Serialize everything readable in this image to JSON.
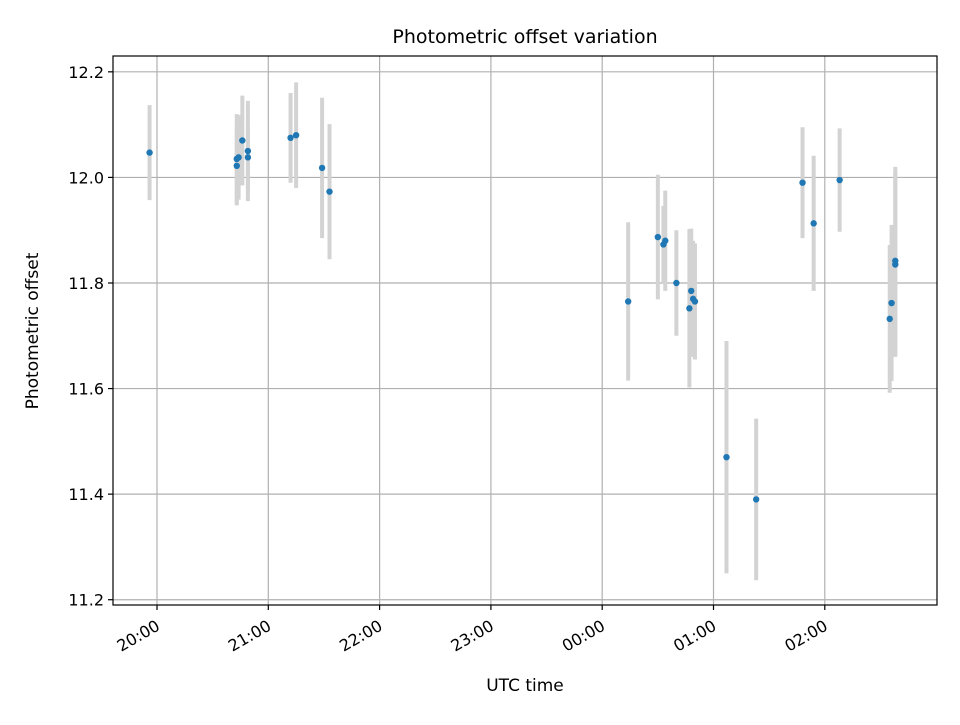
{
  "chart_data": {
    "type": "scatter",
    "title": "Photometric offset variation",
    "xlabel": "UTC time",
    "ylabel": "Photometric offset",
    "x_tick_labels": [
      "20:00",
      "21:00",
      "22:00",
      "23:00",
      "00:00",
      "01:00",
      "02:00"
    ],
    "y_ticks": [
      11.2,
      11.4,
      11.6,
      11.8,
      12.0,
      12.2
    ],
    "y_tick_labels": [
      "11.2",
      "11.4",
      "11.6",
      "11.8",
      "12.0",
      "12.2"
    ],
    "ylim": [
      11.19,
      12.23
    ],
    "grid": true,
    "colors": {
      "points": "#1f77b4",
      "errorbars": "#d3d3d3",
      "grid": "#b0b0b0"
    },
    "points": [
      {
        "t": "19:56",
        "y": 12.047,
        "err": 0.09
      },
      {
        "t": "20:43",
        "y": 12.035,
        "err": 0.085
      },
      {
        "t": "20:43",
        "y": 12.022,
        "err": 0.075
      },
      {
        "t": "20:44",
        "y": 12.038,
        "err": 0.08
      },
      {
        "t": "20:46",
        "y": 12.07,
        "err": 0.085
      },
      {
        "t": "20:49",
        "y": 12.038,
        "err": 0.06
      },
      {
        "t": "20:49",
        "y": 12.05,
        "err": 0.095
      },
      {
        "t": "21:12",
        "y": 12.075,
        "err": 0.085
      },
      {
        "t": "21:15",
        "y": 12.08,
        "err": 0.1
      },
      {
        "t": "21:29",
        "y": 12.018,
        "err": 0.133
      },
      {
        "t": "21:33",
        "y": 11.973,
        "err": 0.128
      },
      {
        "t": "00:14",
        "y": 11.765,
        "err": 0.15
      },
      {
        "t": "00:30",
        "y": 11.887,
        "err": 0.118
      },
      {
        "t": "00:33",
        "y": 11.873,
        "err": 0.073
      },
      {
        "t": "00:34",
        "y": 11.88,
        "err": 0.095
      },
      {
        "t": "00:40",
        "y": 11.8,
        "err": 0.1
      },
      {
        "t": "00:47",
        "y": 11.752,
        "err": 0.15
      },
      {
        "t": "00:48",
        "y": 11.785,
        "err": 0.118
      },
      {
        "t": "00:49",
        "y": 11.77,
        "err": 0.11
      },
      {
        "t": "00:50",
        "y": 11.765,
        "err": 0.11
      },
      {
        "t": "01:07",
        "y": 11.47,
        "err": 0.22
      },
      {
        "t": "01:23",
        "y": 11.39,
        "err": 0.153
      },
      {
        "t": "01:48",
        "y": 11.99,
        "err": 0.105
      },
      {
        "t": "01:54",
        "y": 11.913,
        "err": 0.128
      },
      {
        "t": "02:08",
        "y": 11.995,
        "err": 0.098
      },
      {
        "t": "02:35",
        "y": 11.732,
        "err": 0.14
      },
      {
        "t": "02:36",
        "y": 11.762,
        "err": 0.148
      },
      {
        "t": "02:38",
        "y": 11.835,
        "err": 0.175
      },
      {
        "t": "02:38",
        "y": 11.842,
        "err": 0.178
      }
    ]
  }
}
